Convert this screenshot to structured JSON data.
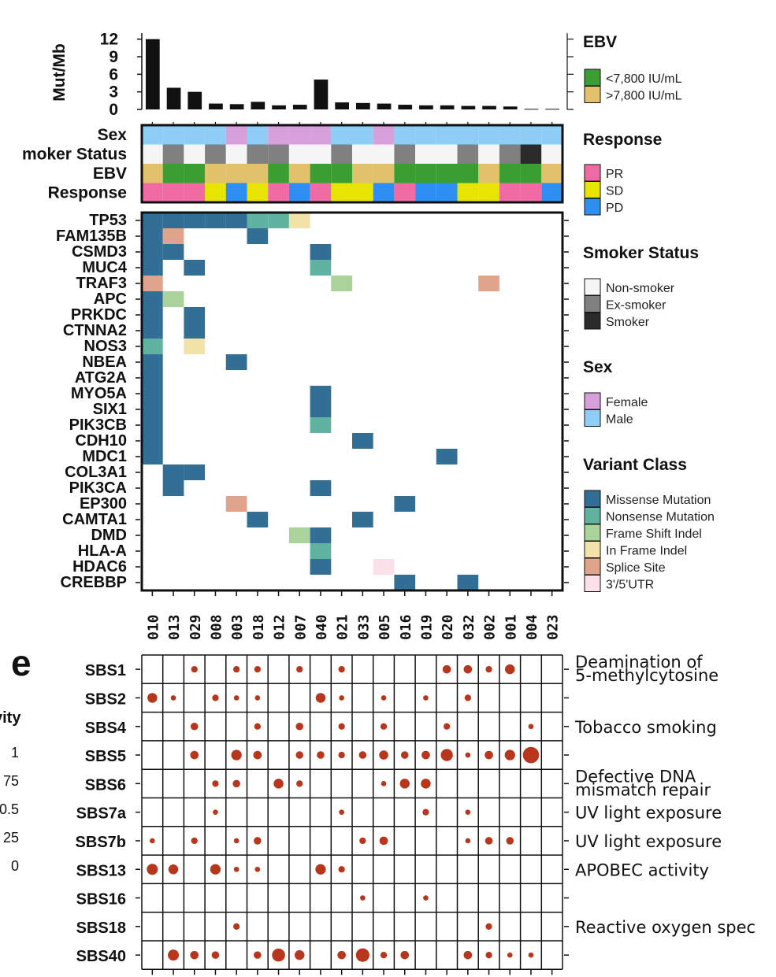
{
  "panel_letter": "e",
  "samples": [
    "010",
    "013",
    "029",
    "008",
    "003",
    "018",
    "012",
    "007",
    "040",
    "021",
    "033",
    "005",
    "016",
    "019",
    "020",
    "032",
    "002",
    "001",
    "004",
    "023"
  ],
  "colors": {
    "male": "#8ecdf5",
    "female": "#d7a0db",
    "nonsmoker": "#f5f5f5",
    "exsmoker": "#808080",
    "smoker": "#2a2a2a",
    "ebv_low": "#3a9e33",
    "ebv_high": "#e3c06b",
    "PR": "#f06aa4",
    "SD": "#e6e400",
    "PD": "#2e8ff2",
    "Missense Mutation": "#336e96",
    "Nonsense Mutation": "#5fb3a0",
    "Frame Shift Indel": "#a9d39a",
    "In Frame Indel": "#f3e2aa",
    "Splice Site": "#e0a38b",
    "3'/5'UTR": "#fbe0ea",
    "dot": "#b8361c"
  },
  "chart_data": [
    {
      "type": "bar",
      "ylabel": "Mut/Mb",
      "yticks": [
        "0",
        "3",
        "6",
        "9",
        "12"
      ],
      "ylim": [
        0,
        12.5
      ],
      "categories": [
        "010",
        "013",
        "029",
        "008",
        "003",
        "018",
        "012",
        "007",
        "040",
        "021",
        "033",
        "005",
        "016",
        "019",
        "020",
        "032",
        "002",
        "001",
        "004",
        "023"
      ],
      "values": [
        12.0,
        3.7,
        3.0,
        1.0,
        0.9,
        1.3,
        0.7,
        0.8,
        5.1,
        1.2,
        1.1,
        1.0,
        0.8,
        0.7,
        0.7,
        0.6,
        0.6,
        0.5,
        0.1,
        0.1
      ]
    },
    {
      "type": "heatmap",
      "rows": [
        "Sex",
        "Smoker Status",
        "EBV",
        "Response"
      ],
      "row_labels": [
        "Sex",
        "moker Status",
        "EBV",
        "Response"
      ],
      "values": {
        "Sex": [
          "male",
          "male",
          "male",
          "male",
          "female",
          "male",
          "female",
          "female",
          "female",
          "male",
          "male",
          "female",
          "male",
          "male",
          "male",
          "male",
          "male",
          "male",
          "male",
          "male"
        ],
        "Smoker Status": [
          "nonsmoker",
          "exsmoker",
          "nonsmoker",
          "exsmoker",
          "nonsmoker",
          "exsmoker",
          "exsmoker",
          "nonsmoker",
          "nonsmoker",
          "exsmoker",
          "nonsmoker",
          "nonsmoker",
          "exsmoker",
          "nonsmoker",
          "nonsmoker",
          "exsmoker",
          "nonsmoker",
          "exsmoker",
          "smoker",
          "nonsmoker"
        ],
        "EBV": [
          "ebv_high",
          "ebv_low",
          "ebv_low",
          "ebv_high",
          "ebv_high",
          "ebv_high",
          "ebv_low",
          "ebv_high",
          "ebv_low",
          "ebv_low",
          "ebv_high",
          "ebv_high",
          "ebv_low",
          "ebv_low",
          "ebv_low",
          "ebv_low",
          "ebv_high",
          "ebv_low",
          "ebv_low",
          "ebv_high"
        ],
        "Response": [
          "PR",
          "PR",
          "PR",
          "SD",
          "PD",
          "SD",
          "PR",
          "PD",
          "PR",
          "SD",
          "SD",
          "PD",
          "PR",
          "PD",
          "PD",
          "SD",
          "SD",
          "PR",
          "PR",
          "PD"
        ]
      }
    },
    {
      "type": "heatmap",
      "genes": [
        "TP53",
        "FAM135B",
        "CSMD3",
        "MUC4",
        "TRAF3",
        "APC",
        "PRKDC",
        "CTNNA2",
        "NOS3",
        "NBEA",
        "ATG2A",
        "MYO5A",
        "SIX1",
        "PIK3CB",
        "CDH10",
        "MDC1",
        "COL3A1",
        "PIK3CA",
        "EP300",
        "CAMTA1",
        "DMD",
        "HLA-A",
        "HDAC6",
        "CREBBP"
      ],
      "mutations": [
        {
          "gene": "TP53",
          "sample": "010",
          "class": "Missense Mutation"
        },
        {
          "gene": "TP53",
          "sample": "013",
          "class": "Missense Mutation"
        },
        {
          "gene": "TP53",
          "sample": "029",
          "class": "Missense Mutation"
        },
        {
          "gene": "TP53",
          "sample": "008",
          "class": "Missense Mutation"
        },
        {
          "gene": "TP53",
          "sample": "003",
          "class": "Missense Mutation"
        },
        {
          "gene": "TP53",
          "sample": "018",
          "class": "Nonsense Mutation"
        },
        {
          "gene": "TP53",
          "sample": "012",
          "class": "Nonsense Mutation"
        },
        {
          "gene": "TP53",
          "sample": "007",
          "class": "In Frame Indel"
        },
        {
          "gene": "FAM135B",
          "sample": "010",
          "class": "Missense Mutation"
        },
        {
          "gene": "FAM135B",
          "sample": "013",
          "class": "Splice Site"
        },
        {
          "gene": "FAM135B",
          "sample": "018",
          "class": "Missense Mutation"
        },
        {
          "gene": "CSMD3",
          "sample": "010",
          "class": "Missense Mutation"
        },
        {
          "gene": "CSMD3",
          "sample": "013",
          "class": "Missense Mutation"
        },
        {
          "gene": "CSMD3",
          "sample": "040",
          "class": "Missense Mutation"
        },
        {
          "gene": "MUC4",
          "sample": "010",
          "class": "Missense Mutation"
        },
        {
          "gene": "MUC4",
          "sample": "029",
          "class": "Missense Mutation"
        },
        {
          "gene": "MUC4",
          "sample": "040",
          "class": "Nonsense Mutation"
        },
        {
          "gene": "TRAF3",
          "sample": "010",
          "class": "Splice Site"
        },
        {
          "gene": "TRAF3",
          "sample": "021",
          "class": "Frame Shift Indel"
        },
        {
          "gene": "TRAF3",
          "sample": "002",
          "class": "Splice Site"
        },
        {
          "gene": "APC",
          "sample": "010",
          "class": "Missense Mutation"
        },
        {
          "gene": "APC",
          "sample": "013",
          "class": "Frame Shift Indel"
        },
        {
          "gene": "PRKDC",
          "sample": "010",
          "class": "Missense Mutation"
        },
        {
          "gene": "PRKDC",
          "sample": "029",
          "class": "Missense Mutation"
        },
        {
          "gene": "CTNNA2",
          "sample": "010",
          "class": "Missense Mutation"
        },
        {
          "gene": "CTNNA2",
          "sample": "029",
          "class": "Missense Mutation"
        },
        {
          "gene": "NOS3",
          "sample": "010",
          "class": "Nonsense Mutation"
        },
        {
          "gene": "NOS3",
          "sample": "029",
          "class": "In Frame Indel"
        },
        {
          "gene": "NBEA",
          "sample": "010",
          "class": "Missense Mutation"
        },
        {
          "gene": "NBEA",
          "sample": "003",
          "class": "Missense Mutation"
        },
        {
          "gene": "ATG2A",
          "sample": "010",
          "class": "Missense Mutation"
        },
        {
          "gene": "MYO5A",
          "sample": "010",
          "class": "Missense Mutation"
        },
        {
          "gene": "MYO5A",
          "sample": "040",
          "class": "Missense Mutation"
        },
        {
          "gene": "SIX1",
          "sample": "010",
          "class": "Missense Mutation"
        },
        {
          "gene": "SIX1",
          "sample": "040",
          "class": "Missense Mutation"
        },
        {
          "gene": "PIK3CB",
          "sample": "010",
          "class": "Missense Mutation"
        },
        {
          "gene": "PIK3CB",
          "sample": "040",
          "class": "Nonsense Mutation"
        },
        {
          "gene": "CDH10",
          "sample": "010",
          "class": "Missense Mutation"
        },
        {
          "gene": "CDH10",
          "sample": "033",
          "class": "Missense Mutation"
        },
        {
          "gene": "MDC1",
          "sample": "010",
          "class": "Missense Mutation"
        },
        {
          "gene": "MDC1",
          "sample": "020",
          "class": "Missense Mutation"
        },
        {
          "gene": "COL3A1",
          "sample": "013",
          "class": "Missense Mutation"
        },
        {
          "gene": "COL3A1",
          "sample": "029",
          "class": "Missense Mutation"
        },
        {
          "gene": "PIK3CA",
          "sample": "013",
          "class": "Missense Mutation"
        },
        {
          "gene": "PIK3CA",
          "sample": "040",
          "class": "Missense Mutation"
        },
        {
          "gene": "EP300",
          "sample": "003",
          "class": "Splice Site"
        },
        {
          "gene": "EP300",
          "sample": "016",
          "class": "Missense Mutation"
        },
        {
          "gene": "CAMTA1",
          "sample": "018",
          "class": "Missense Mutation"
        },
        {
          "gene": "CAMTA1",
          "sample": "033",
          "class": "Missense Mutation"
        },
        {
          "gene": "DMD",
          "sample": "007",
          "class": "Frame Shift Indel"
        },
        {
          "gene": "DMD",
          "sample": "040",
          "class": "Missense Mutation"
        },
        {
          "gene": "HLA-A",
          "sample": "040",
          "class": "Nonsense Mutation"
        },
        {
          "gene": "HDAC6",
          "sample": "040",
          "class": "Missense Mutation"
        },
        {
          "gene": "HDAC6",
          "sample": "005",
          "class": "3'/5'UTR"
        },
        {
          "gene": "CREBBP",
          "sample": "016",
          "class": "Missense Mutation"
        },
        {
          "gene": "CREBBP",
          "sample": "032",
          "class": "Missense Mutation"
        }
      ]
    },
    {
      "type": "scatter",
      "description_free": true,
      "signatures": [
        "SBS1",
        "SBS2",
        "SBS4",
        "SBS5",
        "SBS6",
        "SBS7a",
        "SBS7b",
        "SBS13",
        "SBS16",
        "SBS18",
        "SBS40"
      ],
      "etiology": [
        "Deamination of\n5-methylcytosine",
        "",
        "Tobacco smoking",
        "",
        "Defective DNA\nmismatch repair",
        "UV light exposure",
        "UV light exposure",
        "APOBEC activity",
        "",
        "Reactive oxygen spec",
        ""
      ],
      "activity": {
        "SBS1": [
          0,
          0,
          0.1,
          0,
          0.1,
          0.1,
          0,
          0.1,
          0,
          0.1,
          0,
          0,
          0,
          0,
          0.2,
          0.2,
          0.1,
          0.3,
          0,
          0
        ],
        "SBS2": [
          0.3,
          0.05,
          0,
          0.1,
          0.05,
          0.05,
          0,
          0,
          0.3,
          0.05,
          0,
          0.05,
          0,
          0.05,
          0,
          0.1,
          0,
          0,
          0,
          0
        ],
        "SBS4": [
          0,
          0,
          0.15,
          0,
          0,
          0.1,
          0,
          0.15,
          0,
          0.1,
          0,
          0.1,
          0,
          0,
          0.1,
          0,
          0,
          0,
          0.05,
          0
        ],
        "SBS5": [
          0,
          0,
          0.2,
          0,
          0.35,
          0.2,
          0,
          0.15,
          0.15,
          0.1,
          0.15,
          0.25,
          0.15,
          0.2,
          0.5,
          0.05,
          0.2,
          0.35,
          1.0,
          0
        ],
        "SBS6": [
          0,
          0,
          0,
          0.1,
          0.15,
          0,
          0.3,
          0.1,
          0,
          0,
          0,
          0.05,
          0.3,
          0.3,
          0,
          0,
          0,
          0,
          0,
          0
        ],
        "SBS7a": [
          0,
          0,
          0,
          0.05,
          0,
          0,
          0,
          0,
          0,
          0.05,
          0,
          0,
          0,
          0.1,
          0,
          0.05,
          0,
          0,
          0,
          0
        ],
        "SBS7b": [
          0.05,
          0,
          0.1,
          0,
          0.05,
          0.15,
          0,
          0,
          0,
          0,
          0.1,
          0.2,
          0,
          0,
          0,
          0.05,
          0.15,
          0.15,
          0,
          0
        ],
        "SBS13": [
          0.4,
          0.3,
          0,
          0.35,
          0.05,
          0.05,
          0,
          0,
          0.35,
          0.1,
          0,
          0,
          0,
          0,
          0,
          0,
          0,
          0,
          0,
          0
        ],
        "SBS16": [
          0,
          0,
          0,
          0,
          0,
          0,
          0,
          0,
          0,
          0,
          0.05,
          0,
          0,
          0.05,
          0,
          0,
          0,
          0,
          0,
          0
        ],
        "SBS18": [
          0,
          0,
          0,
          0,
          0.1,
          0,
          0,
          0,
          0,
          0,
          0,
          0,
          0,
          0,
          0,
          0,
          0.1,
          0,
          0,
          0
        ],
        "SBS40": [
          0,
          0.4,
          0.2,
          0.15,
          0,
          0.15,
          0.6,
          0.3,
          0,
          0.2,
          0.65,
          0.1,
          0.2,
          0,
          0,
          0.2,
          0.1,
          0.05,
          0.05,
          0
        ]
      },
      "size_legend_title": "vity",
      "size_legend_values": [
        "1",
        "75",
        "0.5",
        "25",
        "0"
      ]
    }
  ],
  "legends": {
    "ebv": {
      "title": "EBV",
      "items": [
        {
          "label": "<7,800 IU/mL",
          "color": "ebv_low"
        },
        {
          "label": ">7,800 IU/mL",
          "color": "ebv_high"
        }
      ]
    },
    "response": {
      "title": "Response",
      "items": [
        {
          "label": "PR",
          "color": "PR"
        },
        {
          "label": "SD",
          "color": "SD"
        },
        {
          "label": "PD",
          "color": "PD"
        }
      ]
    },
    "smoker": {
      "title": "Smoker Status",
      "items": [
        {
          "label": "Non-smoker",
          "color": "nonsmoker"
        },
        {
          "label": "Ex-smoker",
          "color": "exsmoker"
        },
        {
          "label": "Smoker",
          "color": "smoker"
        }
      ]
    },
    "sex": {
      "title": "Sex",
      "items": [
        {
          "label": "Female",
          "color": "female"
        },
        {
          "label": "Male",
          "color": "male"
        }
      ]
    },
    "variant": {
      "title": "Variant Class",
      "items": [
        {
          "label": "Missense Mutation",
          "color": "Missense Mutation"
        },
        {
          "label": "Nonsense Mutation",
          "color": "Nonsense Mutation"
        },
        {
          "label": "Frame Shift Indel",
          "color": "Frame Shift Indel"
        },
        {
          "label": "In Frame Indel",
          "color": "In Frame Indel"
        },
        {
          "label": "Splice Site",
          "color": "Splice Site"
        },
        {
          "label": "3'/5'UTR",
          "color": "3'/5'UTR"
        }
      ]
    }
  }
}
